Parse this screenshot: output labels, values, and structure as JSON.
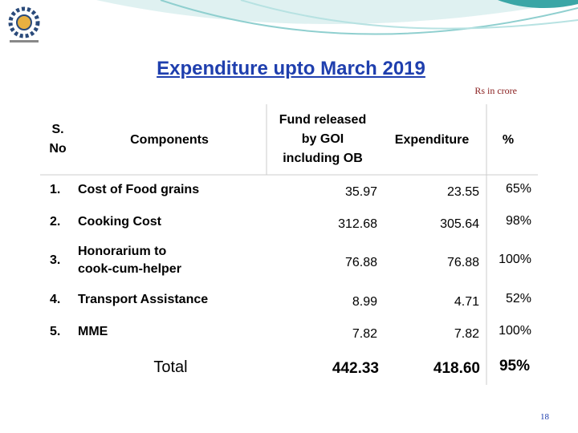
{
  "header": {
    "title": "Expenditure upto March  2019",
    "unit_note": "Rs in crore"
  },
  "table": {
    "columns": [
      "S.\nNo",
      "Components",
      "Fund released\nby GOI\nincluding OB",
      "Expenditure",
      "%"
    ],
    "rows": [
      [
        "1.",
        "Cost of Food grains",
        "35.97",
        "23.55",
        "65%"
      ],
      [
        "2.",
        "Cooking Cost",
        "312.68",
        "305.64",
        "98%"
      ],
      [
        "3.",
        "Honorarium to\ncook-cum-helper",
        "76.88",
        "76.88",
        "100%"
      ],
      [
        "4.",
        "Transport Assistance",
        "8.99",
        "4.71",
        "52%"
      ],
      [
        "5.",
        "MME",
        "7.82",
        "7.82",
        "100%"
      ]
    ],
    "total": {
      "label": "Total",
      "fund": "442.33",
      "expenditure": "418.60",
      "percent": "95%"
    }
  },
  "footer": {
    "page_number": "18"
  }
}
